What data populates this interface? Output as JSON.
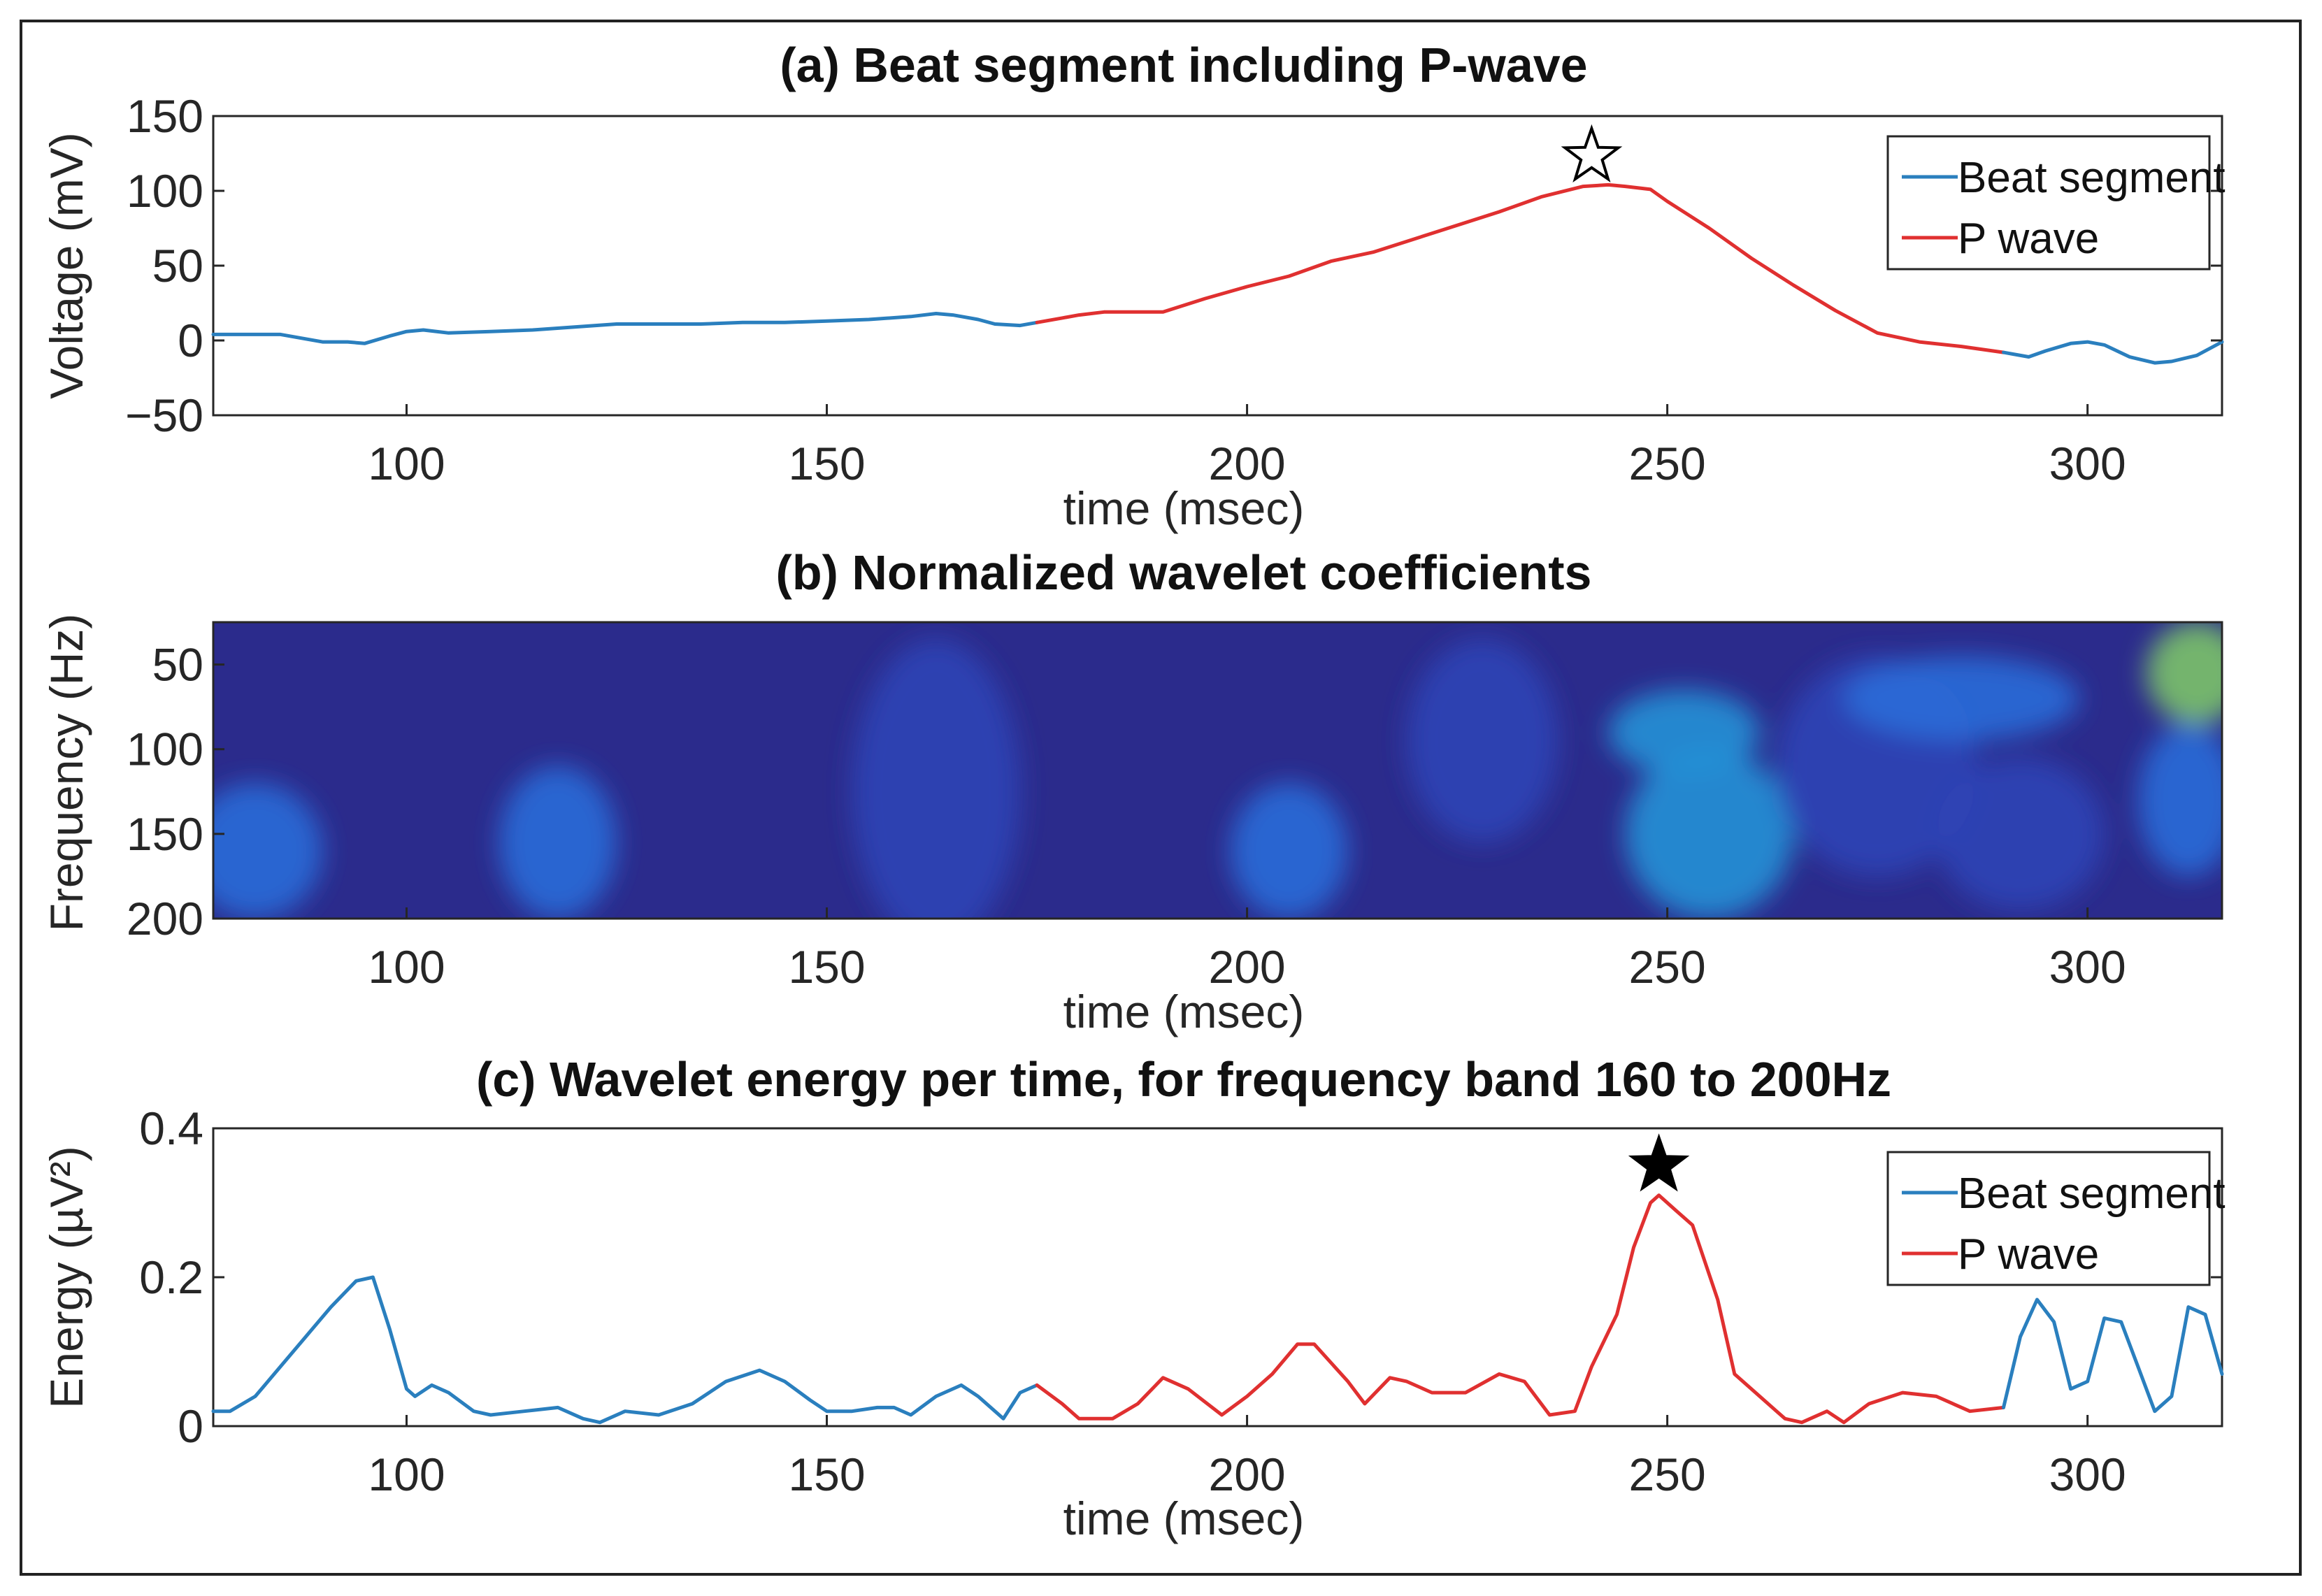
{
  "colors": {
    "beat": "#2a7fbe",
    "pwave": "#e03030",
    "axis": "#262626"
  },
  "chart_data": [
    {
      "type": "line",
      "title": "(a) Beat segment including P-wave",
      "xlabel": "time (msec)",
      "ylabel": "Voltage (mV)",
      "xlim": [
        77,
        316
      ],
      "ylim": [
        -50,
        150
      ],
      "xticks": [
        100,
        150,
        200,
        250,
        300
      ],
      "yticks": [
        -50,
        0,
        50,
        100,
        150
      ],
      "ytick_labels": [
        "−50",
        "0",
        "50",
        "100",
        "150"
      ],
      "legend": [
        "Beat segment",
        "P wave"
      ],
      "legend_position": "top-right",
      "marker": {
        "symbol": "hollow-star",
        "x": 241,
        "y": 123
      },
      "series": [
        {
          "name": "Beat segment",
          "color": "beat",
          "x": [
            77,
            80,
            85,
            90,
            93,
            95,
            98,
            100,
            102,
            105,
            110,
            115,
            120,
            125,
            130,
            135,
            140,
            145,
            150,
            155,
            160,
            163,
            165,
            168,
            170,
            173,
            175
          ],
          "y": [
            4,
            4,
            4,
            -1,
            -1,
            -2,
            3,
            6,
            7,
            5,
            6,
            7,
            9,
            11,
            11,
            11,
            12,
            12,
            13,
            14,
            16,
            18,
            17,
            14,
            11,
            10,
            12
          ]
        },
        {
          "name": "P wave",
          "color": "pwave",
          "x": [
            175,
            178,
            180,
            183,
            185,
            190,
            195,
            200,
            205,
            210,
            215,
            220,
            225,
            230,
            235,
            240,
            243,
            245,
            248,
            250,
            255,
            260,
            265,
            270,
            275,
            280,
            285,
            290
          ],
          "y": [
            12,
            15,
            17,
            19,
            19,
            19,
            28,
            36,
            43,
            53,
            59,
            68,
            77,
            86,
            96,
            103,
            104,
            103,
            101,
            93,
            75,
            55,
            37,
            20,
            5,
            -1,
            -4,
            -8
          ]
        },
        {
          "name": "Beat segment",
          "color": "beat",
          "x": [
            290,
            293,
            295,
            298,
            300,
            302,
            305,
            308,
            310,
            313,
            316
          ],
          "y": [
            -8,
            -11,
            -7,
            -2,
            -1,
            -3,
            -11,
            -15,
            -14,
            -10,
            -1
          ]
        }
      ]
    },
    {
      "type": "heatmap",
      "title": "(b) Normalized wavelet coefficients",
      "xlabel": "time (msec)",
      "ylabel": "Frequency (Hz)",
      "xlim": [
        77,
        316
      ],
      "ylim": [
        200,
        25
      ],
      "xticks": [
        100,
        150,
        200,
        250,
        300
      ],
      "yticks": [
        50,
        100,
        150,
        200
      ],
      "colormap": [
        "#2b2b8c",
        "#2f43b6",
        "#2a6bd8",
        "#2191d6",
        "#1fb2b0",
        "#7cc36a",
        "#f0b830"
      ],
      "hotspots": [
        {
          "t": 82,
          "f": 160,
          "dt": 8,
          "df": 40,
          "v": 0.32
        },
        {
          "t": 118,
          "f": 155,
          "dt": 7,
          "df": 45,
          "v": 0.26
        },
        {
          "t": 163,
          "f": 125,
          "dt": 10,
          "df": 90,
          "v": 0.1
        },
        {
          "t": 205,
          "f": 160,
          "dt": 7,
          "df": 40,
          "v": 0.28
        },
        {
          "t": 228,
          "f": 95,
          "dt": 9,
          "df": 60,
          "v": 0.08
        },
        {
          "t": 252,
          "f": 90,
          "dt": 9,
          "df": 25,
          "v": 0.5
        },
        {
          "t": 255,
          "f": 150,
          "dt": 10,
          "df": 50,
          "v": 0.46
        },
        {
          "t": 275,
          "f": 110,
          "dt": 12,
          "df": 65,
          "v": 0.22
        },
        {
          "t": 285,
          "f": 70,
          "dt": 14,
          "df": 25,
          "v": 0.3
        },
        {
          "t": 292,
          "f": 150,
          "dt": 10,
          "df": 45,
          "v": 0.18
        },
        {
          "t": 313,
          "f": 55,
          "dt": 6,
          "df": 30,
          "v": 0.85
        },
        {
          "t": 312,
          "f": 130,
          "dt": 6,
          "df": 45,
          "v": 0.4
        }
      ]
    },
    {
      "type": "line",
      "title": "(c) Wavelet energy per time, for frequency band 160 to 200Hz",
      "xlabel": "time (msec)",
      "ylabel": "Energy (µV²)",
      "xlim": [
        77,
        316
      ],
      "ylim": [
        0,
        0.4
      ],
      "xticks": [
        100,
        150,
        200,
        250,
        300
      ],
      "yticks": [
        0,
        0.2,
        0.4
      ],
      "ytick_labels": [
        "0",
        "0.2",
        "0.4"
      ],
      "legend": [
        "Beat segment",
        "P wave"
      ],
      "legend_position": "top-right",
      "marker": {
        "symbol": "filled-star",
        "x": 249,
        "y": 0.35
      },
      "series": [
        {
          "name": "Beat segment",
          "color": "beat",
          "x": [
            77,
            79,
            82,
            85,
            88,
            91,
            94,
            96,
            98,
            100,
            101,
            103,
            105,
            108,
            110,
            114,
            118,
            121,
            123,
            126,
            130,
            134,
            138,
            142,
            145,
            148,
            150,
            153,
            156,
            158,
            160,
            163,
            166,
            168,
            171,
            173,
            175
          ],
          "y": [
            0.02,
            0.02,
            0.04,
            0.08,
            0.12,
            0.16,
            0.195,
            0.2,
            0.13,
            0.05,
            0.04,
            0.055,
            0.045,
            0.02,
            0.015,
            0.02,
            0.025,
            0.01,
            0.005,
            0.02,
            0.015,
            0.03,
            0.06,
            0.075,
            0.06,
            0.035,
            0.02,
            0.02,
            0.025,
            0.025,
            0.015,
            0.04,
            0.055,
            0.04,
            0.01,
            0.045,
            0.055
          ]
        },
        {
          "name": "P wave",
          "color": "pwave",
          "x": [
            175,
            178,
            180,
            184,
            187,
            190,
            193,
            197,
            200,
            203,
            206,
            208,
            212,
            214,
            217,
            219,
            222,
            226,
            230,
            233,
            236,
            239,
            241,
            244,
            246,
            248,
            249,
            251,
            253,
            256,
            258,
            261,
            264,
            266,
            269,
            271,
            274,
            278,
            282,
            286,
            290
          ],
          "y": [
            0.055,
            0.03,
            0.01,
            0.01,
            0.03,
            0.065,
            0.05,
            0.015,
            0.04,
            0.07,
            0.11,
            0.11,
            0.06,
            0.03,
            0.065,
            0.06,
            0.045,
            0.045,
            0.07,
            0.06,
            0.015,
            0.02,
            0.08,
            0.15,
            0.24,
            0.3,
            0.31,
            0.29,
            0.27,
            0.17,
            0.07,
            0.04,
            0.01,
            0.005,
            0.02,
            0.005,
            0.03,
            0.045,
            0.04,
            0.02,
            0.025
          ]
        },
        {
          "name": "Beat segment",
          "color": "beat",
          "x": [
            290,
            292,
            294,
            296,
            298,
            300,
            302,
            304,
            306,
            308,
            310,
            312,
            314,
            316
          ],
          "y": [
            0.025,
            0.12,
            0.17,
            0.14,
            0.05,
            0.06,
            0.145,
            0.14,
            0.08,
            0.02,
            0.04,
            0.16,
            0.15,
            0.07
          ]
        }
      ]
    }
  ]
}
